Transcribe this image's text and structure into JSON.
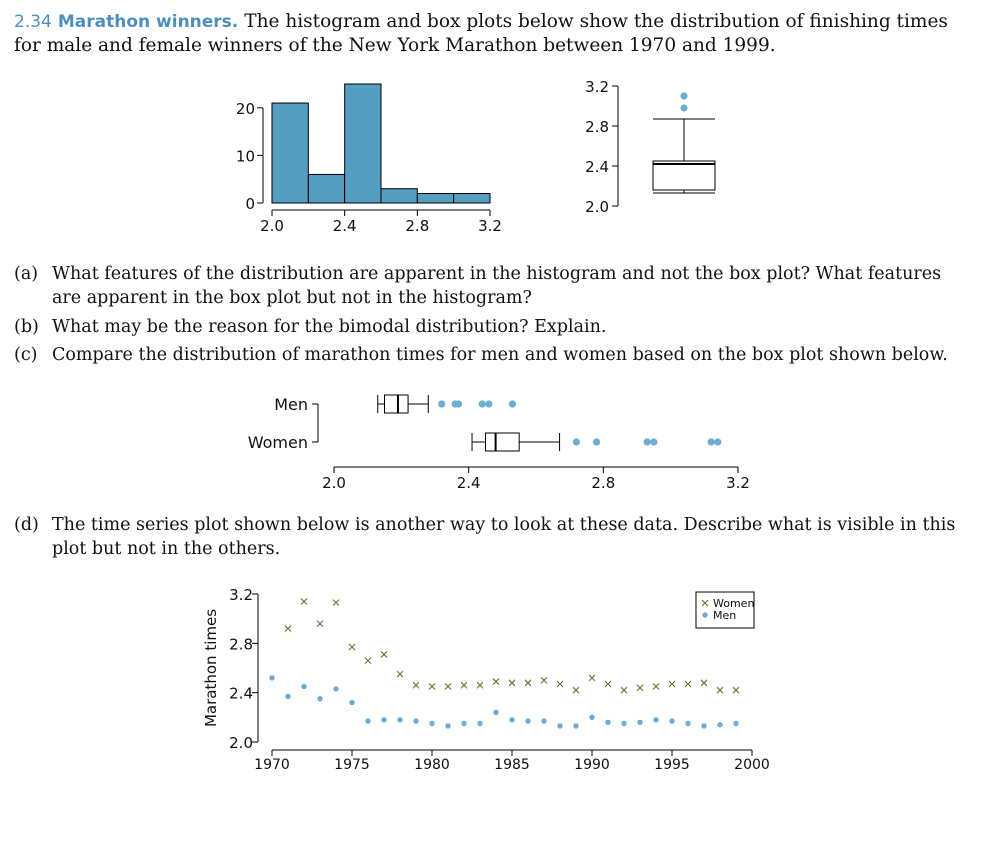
{
  "exercise": {
    "number": "2.34",
    "title": "Marathon winners.",
    "intro": "The histogram and box plots below show the distribution of finishing times for male and female winners of the New York Marathon between 1970 and 1999."
  },
  "questions": [
    {
      "label": "(a)",
      "text": "What features of the distribution are apparent in the histogram and not the box plot? What features are apparent in the box plot but not in the histogram?"
    },
    {
      "label": "(b)",
      "text": "What may be the reason for the bimodal distribution? Explain."
    },
    {
      "label": "(c)",
      "text": "Compare the distribution of marathon times for men and women based on the box plot shown below."
    },
    {
      "label": "(d)",
      "text": "The time series plot shown below is another way to look at these data. Describe what is visible in this plot but not in the others."
    }
  ],
  "colors": {
    "fill": "#569ec1",
    "point": "#6aaed0",
    "women": "#5a7a2a",
    "text": "#111111"
  },
  "chart_data": [
    {
      "type": "bar",
      "subtype": "histogram",
      "bin_edges": [
        2.0,
        2.2,
        2.4,
        2.6,
        2.8,
        3.0,
        3.2
      ],
      "values": [
        21,
        6,
        25,
        3,
        2,
        2
      ],
      "xticks": [
        "2.0",
        "2.4",
        "2.8",
        "3.2"
      ],
      "yticks": [
        "0",
        "10",
        "20"
      ],
      "xlim": [
        2.0,
        3.2
      ],
      "ylim": [
        0,
        25
      ]
    },
    {
      "type": "box",
      "orientation": "vertical",
      "yticks": [
        "2.0",
        "2.4",
        "2.8",
        "3.2"
      ],
      "ylim": [
        2.0,
        3.2
      ],
      "whisker_low": 2.13,
      "q1": 2.16,
      "median": 2.42,
      "q3": 2.45,
      "whisker_high": 2.87,
      "outliers": [
        2.98,
        3.1
      ]
    },
    {
      "type": "box",
      "orientation": "horizontal",
      "xticks": [
        "2.0",
        "2.4",
        "2.8",
        "3.2"
      ],
      "xlim": [
        2.0,
        3.2
      ],
      "groups": [
        {
          "name": "Men",
          "whisker_low": 2.13,
          "q1": 2.15,
          "median": 2.19,
          "q3": 2.22,
          "whisker_high": 2.28,
          "outliers": [
            2.32,
            2.36,
            2.37,
            2.44,
            2.46,
            2.53
          ]
        },
        {
          "name": "Women",
          "whisker_low": 2.41,
          "q1": 2.45,
          "median": 2.48,
          "q3": 2.55,
          "whisker_high": 2.67,
          "outliers": [
            2.72,
            2.78,
            2.93,
            2.95,
            3.12,
            3.14
          ]
        }
      ]
    },
    {
      "type": "scatter",
      "subtype": "time series",
      "ylabel": "Marathon times",
      "xticks": [
        "1970",
        "1975",
        "1980",
        "1985",
        "1990",
        "1995",
        "2000"
      ],
      "yticks": [
        "2.0",
        "2.4",
        "2.8",
        "3.2"
      ],
      "xlim": [
        1970,
        2000
      ],
      "ylim": [
        2.0,
        3.2
      ],
      "legend_position": "top-right",
      "series": [
        {
          "name": "Women",
          "marker": "x",
          "x": [
            1971,
            1972,
            1973,
            1974,
            1975,
            1976,
            1977,
            1978,
            1979,
            1980,
            1981,
            1982,
            1983,
            1984,
            1985,
            1986,
            1987,
            1988,
            1989,
            1990,
            1991,
            1992,
            1993,
            1994,
            1995,
            1996,
            1997,
            1998,
            1999
          ],
          "y": [
            2.92,
            3.14,
            2.96,
            3.13,
            2.77,
            2.66,
            2.71,
            2.55,
            2.46,
            2.45,
            2.45,
            2.46,
            2.46,
            2.49,
            2.48,
            2.48,
            2.5,
            2.47,
            2.42,
            2.52,
            2.47,
            2.42,
            2.44,
            2.45,
            2.47,
            2.47,
            2.48,
            2.42,
            2.42
          ]
        },
        {
          "name": "Men",
          "marker": "o",
          "x": [
            1970,
            1971,
            1972,
            1973,
            1974,
            1975,
            1976,
            1977,
            1978,
            1979,
            1980,
            1981,
            1982,
            1983,
            1984,
            1985,
            1986,
            1987,
            1988,
            1989,
            1990,
            1991,
            1992,
            1993,
            1994,
            1995,
            1996,
            1997,
            1998,
            1999
          ],
          "y": [
            2.52,
            2.37,
            2.45,
            2.35,
            2.43,
            2.32,
            2.17,
            2.18,
            2.18,
            2.17,
            2.15,
            2.13,
            2.15,
            2.15,
            2.24,
            2.18,
            2.17,
            2.17,
            2.13,
            2.13,
            2.2,
            2.16,
            2.15,
            2.16,
            2.18,
            2.17,
            2.15,
            2.13,
            2.14,
            2.15
          ]
        }
      ]
    }
  ]
}
